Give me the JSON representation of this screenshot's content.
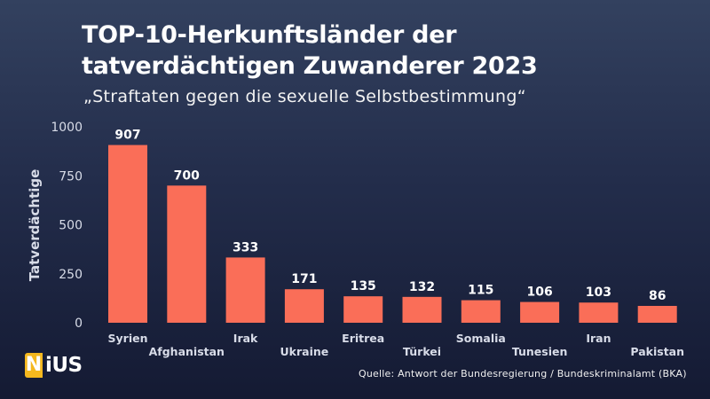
{
  "title_line1": "TOP-10-Herkunftsländer der",
  "title_line2": "tatverdächtigen Zuwanderer 2023",
  "subtitle": "„Straftaten gegen die sexuelle Selbstbestimmung“",
  "logo": {
    "first_letter": "N",
    "rest": "iUS"
  },
  "source": "Quelle: Antwort der Bundesregierung / Bundeskriminalamt (BKA)",
  "colors": {
    "bar": "#fa6e58",
    "text": "#ffffff",
    "axis": "#d8dce8"
  },
  "chart_data": {
    "type": "bar",
    "title": "TOP-10-Herkunftsländer der tatverdächtigen Zuwanderer 2023",
    "xlabel": "",
    "ylabel": "Tatverdächtige",
    "ylim": [
      0,
      1000
    ],
    "yticks": [
      0,
      250,
      500,
      750,
      1000
    ],
    "grid": false,
    "categories": [
      "Syrien",
      "Afghanistan",
      "Irak",
      "Ukraine",
      "Eritrea",
      "Türkei",
      "Somalia",
      "Tunesien",
      "Iran",
      "Pakistan"
    ],
    "values": [
      907,
      700,
      333,
      171,
      135,
      132,
      115,
      106,
      103,
      86
    ]
  }
}
